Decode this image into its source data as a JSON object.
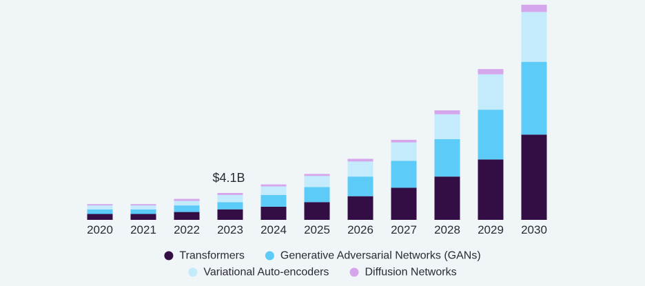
{
  "chart_data": {
    "type": "bar",
    "stacked": true,
    "categories": [
      "2020",
      "2021",
      "2022",
      "2023",
      "2024",
      "2025",
      "2026",
      "2027",
      "2028",
      "2029",
      "2030"
    ],
    "series": [
      {
        "name": "Transformers",
        "color": "#330e45",
        "values": [
          0.9,
          0.9,
          1.2,
          1.6,
          2.0,
          2.7,
          3.6,
          4.9,
          6.6,
          9.2,
          13.0
        ]
      },
      {
        "name": "Generative Adversarial Networks (GANs)",
        "color": "#5ccbf7",
        "values": [
          0.7,
          0.7,
          1.0,
          1.1,
          1.8,
          2.3,
          3.0,
          4.1,
          5.7,
          7.6,
          11.1
        ]
      },
      {
        "name": "Variational Auto-encoders",
        "color": "#c4ebfb",
        "values": [
          0.6,
          0.6,
          0.7,
          1.1,
          1.3,
          1.7,
          2.3,
          2.8,
          3.8,
          5.4,
          7.6
        ]
      },
      {
        "name": "Diffusion Networks",
        "color": "#d6a6ec",
        "values": [
          0.2,
          0.2,
          0.3,
          0.3,
          0.3,
          0.3,
          0.4,
          0.4,
          0.6,
          0.8,
          1.1
        ]
      }
    ],
    "annotations": [
      {
        "category": "2023",
        "text": "$4.1B"
      }
    ],
    "ylim": [
      0,
      33
    ],
    "legend_position": "bottom",
    "grid": false
  }
}
